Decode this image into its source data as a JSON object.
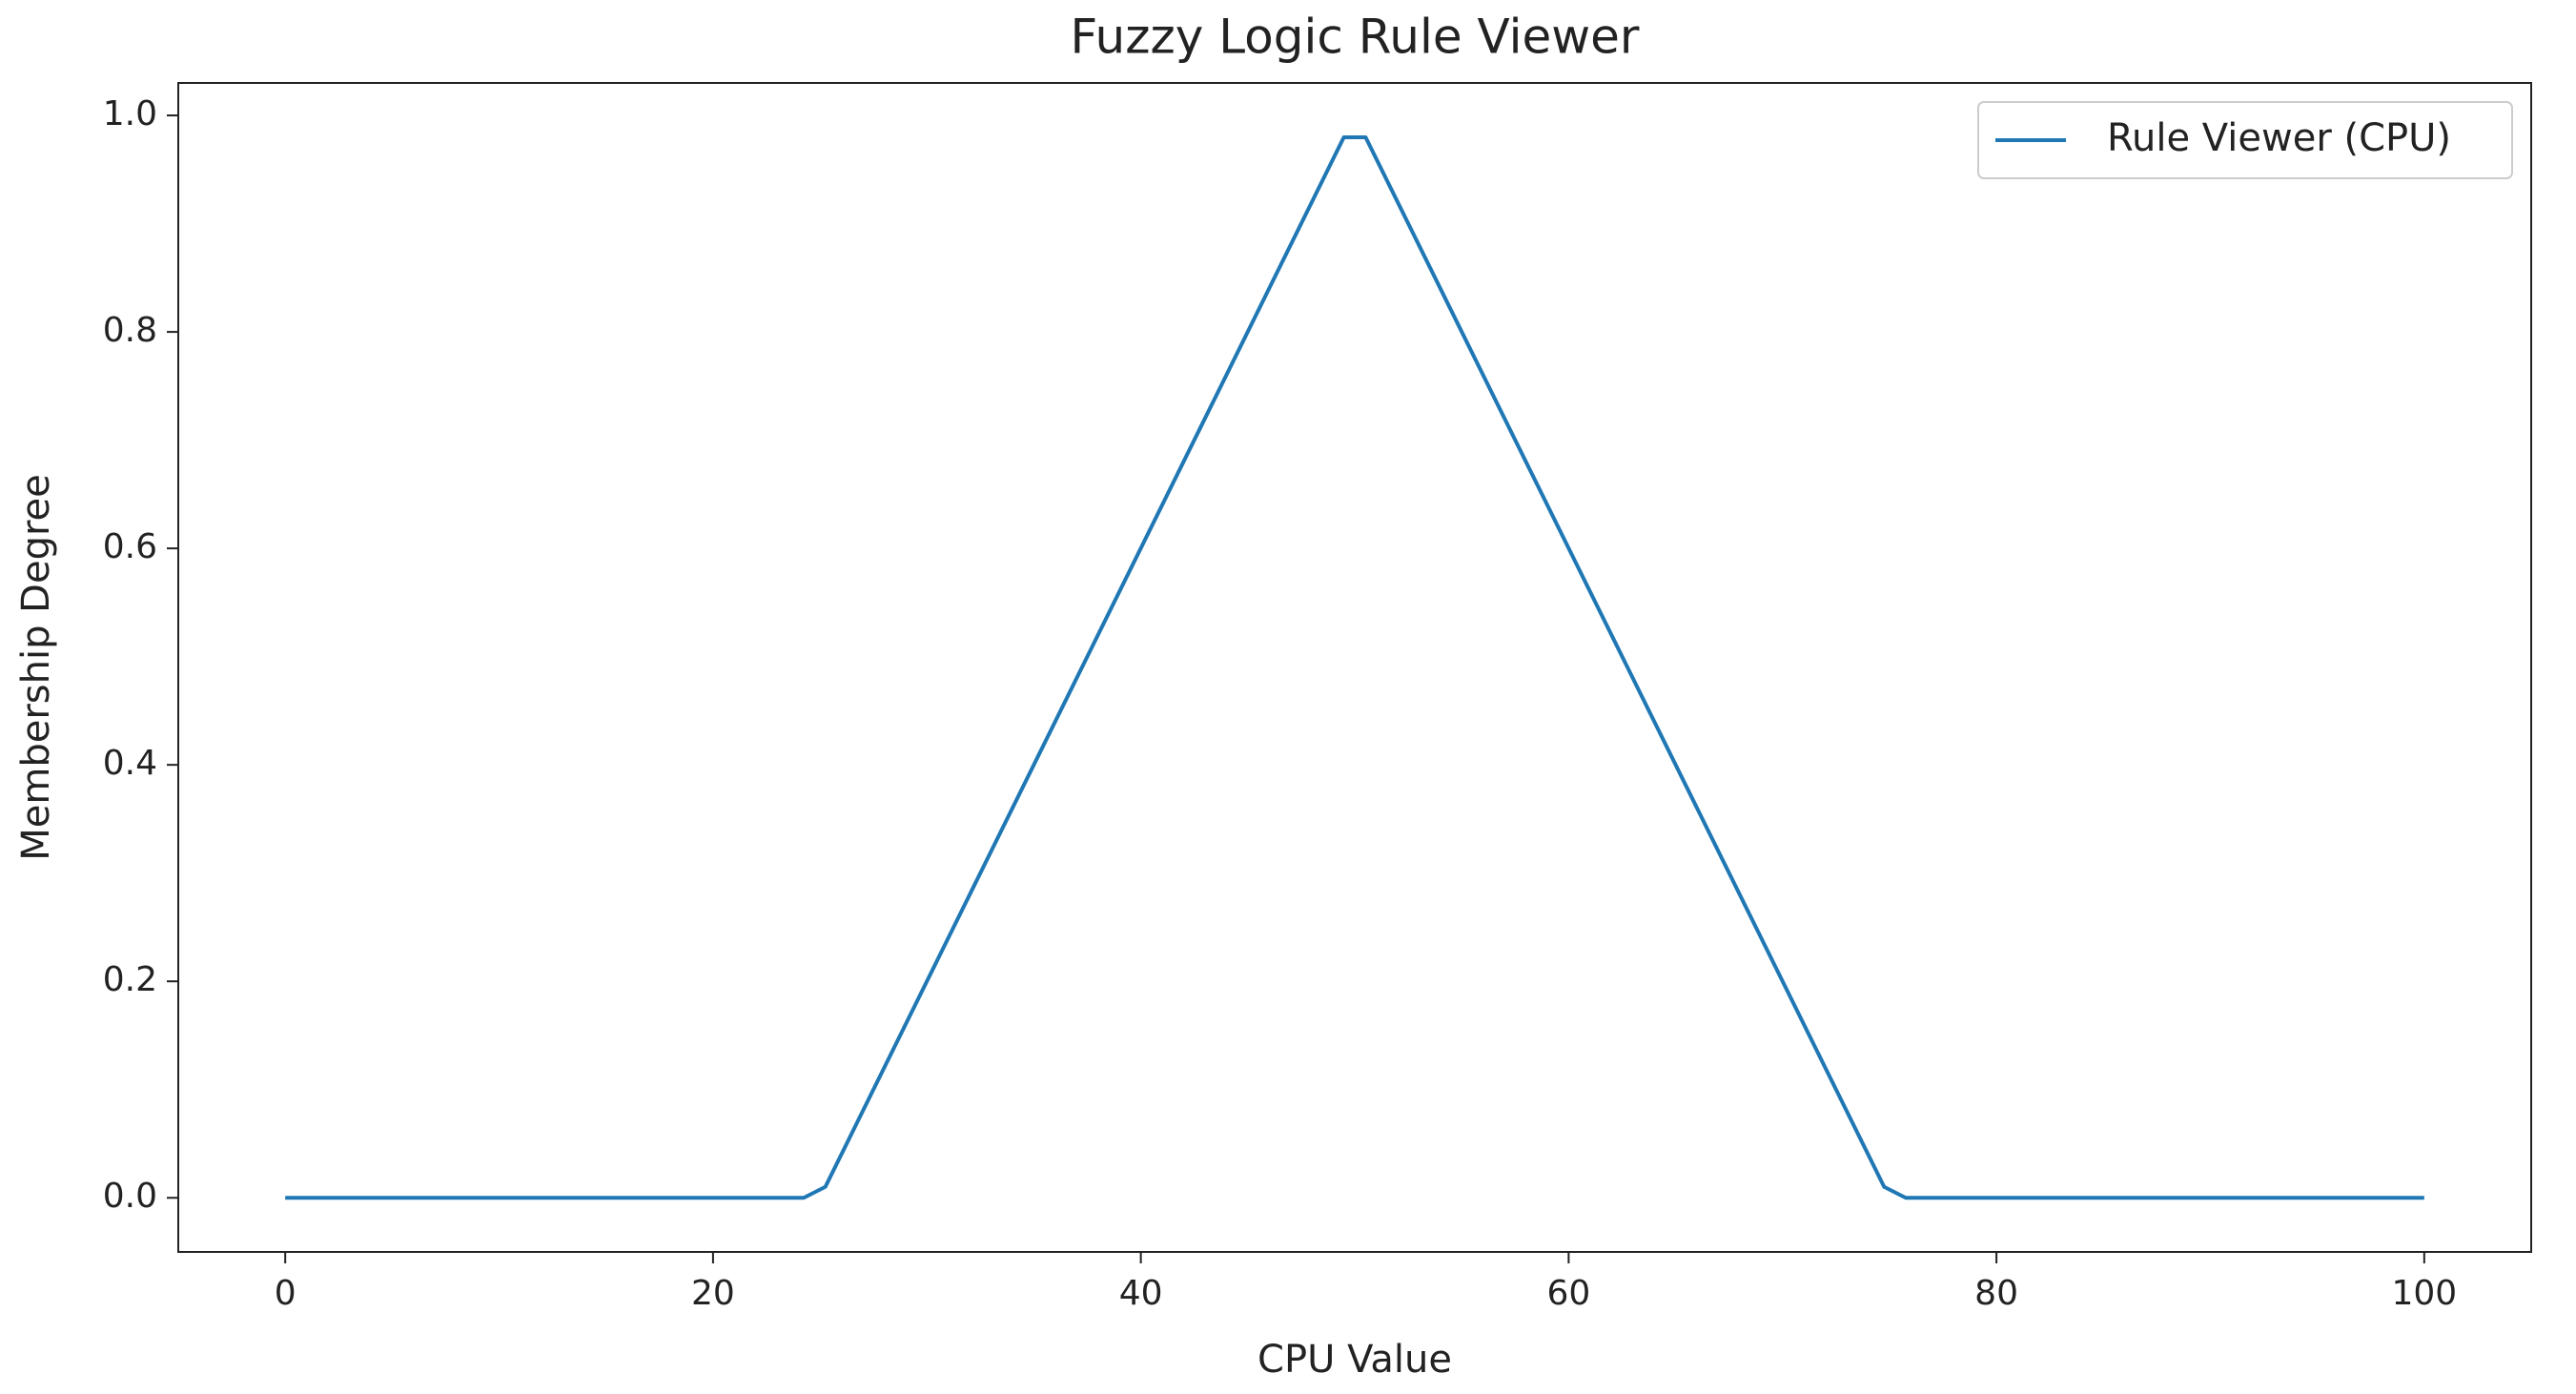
{
  "chart_data": {
    "type": "line",
    "title": "Fuzzy Logic Rule Viewer",
    "x_label": "CPU Value",
    "y_label": "Membership Degree",
    "x": [
      0,
      24.24,
      25.25,
      49.49,
      50.51,
      74.75,
      75.76,
      100
    ],
    "series": [
      {
        "name": "Rule Viewer (CPU)",
        "color": "#1f77b4",
        "values": [
          0,
          0,
          0.0101,
          0.9798,
          0.9798,
          0.0101,
          0,
          0
        ]
      }
    ],
    "xlim": [
      -5,
      105
    ],
    "xticks": [
      0,
      20,
      40,
      60,
      80,
      100
    ],
    "ylim": [
      -0.05,
      1.03
    ],
    "yticks": [
      {
        "value": 0,
        "label": "0.0"
      },
      {
        "value": 0.2,
        "label": "0.2"
      },
      {
        "value": 0.4,
        "label": "0.4"
      },
      {
        "value": 0.6,
        "label": "0.6"
      },
      {
        "value": 0.8,
        "label": "0.8"
      },
      {
        "value": 1,
        "label": "1.0"
      }
    ],
    "grid": false,
    "legend": "upper right"
  }
}
